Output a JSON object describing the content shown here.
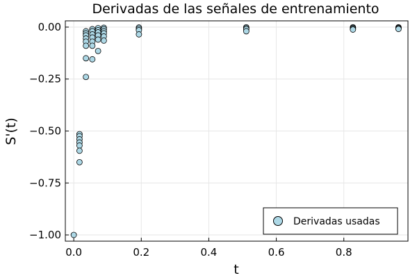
{
  "chart_data": {
    "type": "scatter",
    "title": "Derivadas de las señales de entrenamiento",
    "xlabel": "t",
    "ylabel": "S'(t)",
    "xlim": [
      -0.025,
      0.99
    ],
    "ylim": [
      -1.03,
      0.03
    ],
    "x_ticks": [
      0.0,
      0.2,
      0.4,
      0.6,
      0.8
    ],
    "x_tick_labels": [
      "0.0",
      "0.2",
      "0.4",
      "0.6",
      "0.8"
    ],
    "y_ticks": [
      0.0,
      -0.25,
      -0.5,
      -0.75,
      -1.0
    ],
    "y_tick_labels": [
      "0.00",
      "−0.25",
      "−0.50",
      "−0.75",
      "−1.00"
    ],
    "grid": true,
    "legend_position": "bottom-right",
    "marker_color": "#add8e6",
    "marker_edge_color": "#000000",
    "series": [
      {
        "name": "Derivadas usadas",
        "points": [
          [
            0.0,
            -1.0
          ],
          [
            0.017,
            -0.515
          ],
          [
            0.017,
            -0.525
          ],
          [
            0.017,
            -0.54
          ],
          [
            0.017,
            -0.555
          ],
          [
            0.017,
            -0.57
          ],
          [
            0.017,
            -0.595
          ],
          [
            0.017,
            -0.65
          ],
          [
            0.036,
            -0.02
          ],
          [
            0.036,
            -0.03
          ],
          [
            0.036,
            -0.04
          ],
          [
            0.036,
            -0.055
          ],
          [
            0.036,
            -0.07
          ],
          [
            0.036,
            -0.09
          ],
          [
            0.036,
            -0.15
          ],
          [
            0.036,
            -0.24
          ],
          [
            0.055,
            -0.01
          ],
          [
            0.055,
            -0.02
          ],
          [
            0.055,
            -0.035
          ],
          [
            0.055,
            -0.05
          ],
          [
            0.055,
            -0.07
          ],
          [
            0.055,
            -0.09
          ],
          [
            0.055,
            -0.155
          ],
          [
            0.072,
            -0.005
          ],
          [
            0.072,
            -0.015
          ],
          [
            0.072,
            -0.025
          ],
          [
            0.072,
            -0.04
          ],
          [
            0.072,
            -0.06
          ],
          [
            0.072,
            -0.115
          ],
          [
            0.089,
            -0.003
          ],
          [
            0.089,
            -0.01
          ],
          [
            0.089,
            -0.02
          ],
          [
            0.089,
            -0.03
          ],
          [
            0.089,
            -0.045
          ],
          [
            0.089,
            -0.065
          ],
          [
            0.193,
            -0.002
          ],
          [
            0.193,
            -0.008
          ],
          [
            0.193,
            -0.015
          ],
          [
            0.193,
            -0.035
          ],
          [
            0.511,
            -0.001
          ],
          [
            0.511,
            -0.005
          ],
          [
            0.511,
            -0.01
          ],
          [
            0.511,
            -0.02
          ],
          [
            0.827,
            -0.001
          ],
          [
            0.827,
            -0.004
          ],
          [
            0.827,
            -0.008
          ],
          [
            0.827,
            -0.012
          ],
          [
            0.962,
            -0.001
          ],
          [
            0.962,
            -0.003
          ],
          [
            0.962,
            -0.006
          ],
          [
            0.962,
            -0.009
          ]
        ]
      }
    ]
  }
}
